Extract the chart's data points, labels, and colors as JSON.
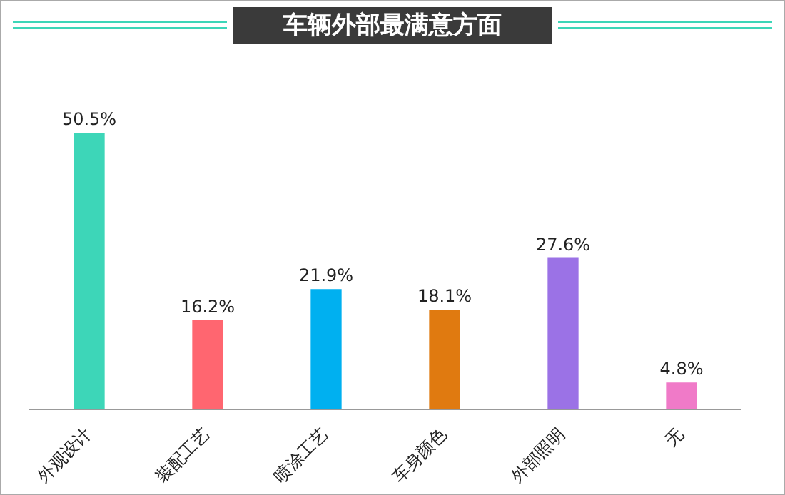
{
  "chart_data": {
    "type": "bar",
    "title": "车辆外部最满意方面",
    "categories": [
      "外观设计",
      "装配工艺",
      "喷涂工艺",
      "车身颜色",
      "外部照明",
      "无"
    ],
    "values": [
      50.5,
      16.2,
      21.9,
      18.1,
      27.6,
      4.8
    ],
    "value_labels": [
      "50.5%",
      "16.2%",
      "21.9%",
      "18.1%",
      "27.6%",
      "4.8%"
    ],
    "colors": [
      "#3dd6b8",
      "#ff6670",
      "#00b0f0",
      "#e07a10",
      "#9b72e6",
      "#f07ac8"
    ]
  }
}
